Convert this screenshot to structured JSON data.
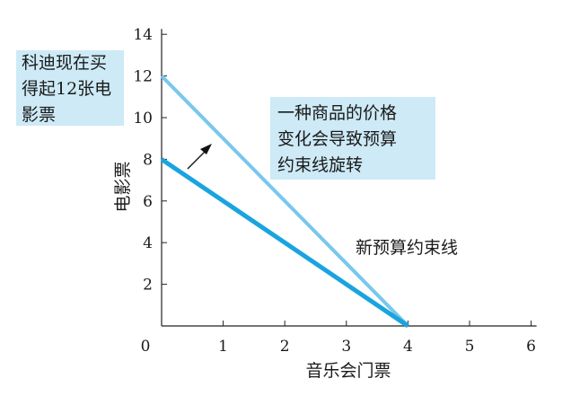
{
  "chart_data": {
    "type": "line",
    "xlabel": "音乐会门票",
    "ylabel": "电影票",
    "xlim": [
      0,
      6
    ],
    "ylim": [
      0,
      14
    ],
    "x_ticks": [
      "0",
      "1",
      "2",
      "3",
      "4",
      "5",
      "6"
    ],
    "y_ticks": [
      "2",
      "4",
      "6",
      "8",
      "10",
      "12",
      "14"
    ],
    "grid": false,
    "series": [
      {
        "name": "",
        "color": "#79c7ec",
        "points": [
          [
            0,
            12
          ],
          [
            4,
            0
          ]
        ]
      },
      {
        "name": "",
        "color": "#1aa4df",
        "points": [
          [
            0,
            8
          ],
          [
            4,
            0
          ]
        ]
      }
    ],
    "annotations": {
      "box_left": "科迪现在买\n得起12张电\n影票",
      "box_center": "一种商品的价格\n变化会导致预算\n约束线旋转",
      "new_line_label": "新预算约束线"
    }
  }
}
